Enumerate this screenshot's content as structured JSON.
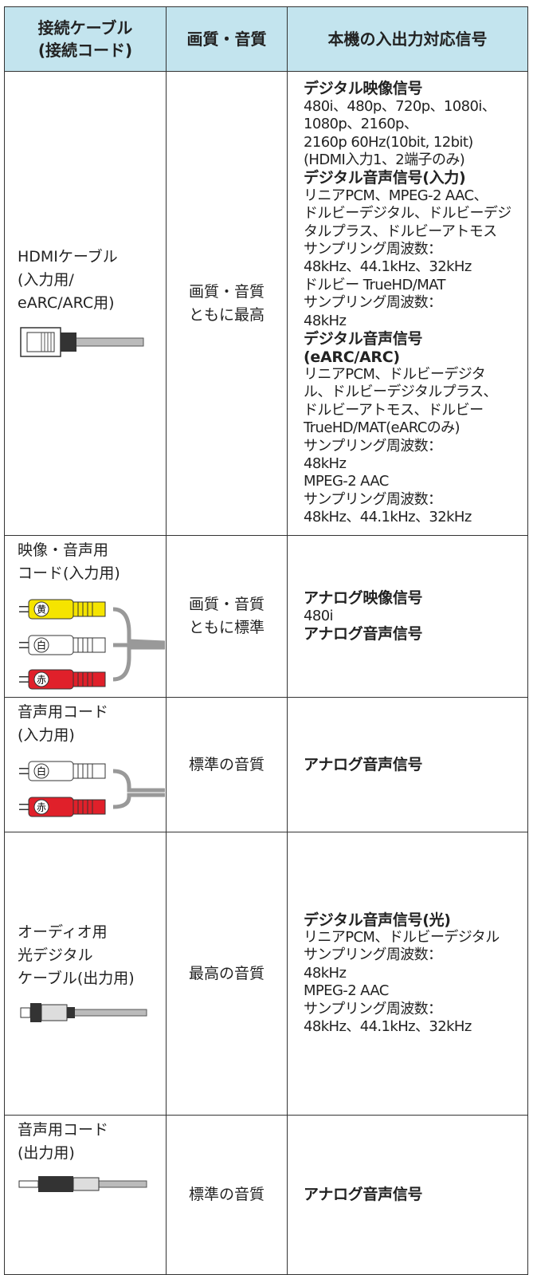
{
  "table": {
    "header": [
      [
        "接続ケーブル",
        "(接続コード)"
      ],
      [
        "画質・音質"
      ],
      [
        "本機の入出力対応信号"
      ]
    ],
    "rows": [
      {
        "cable": [
          "HDMIケーブル",
          "(入力用/",
          "eARC/ARC用)"
        ],
        "quality": [
          "画質・音質",
          "ともに最高"
        ],
        "signals": [
          {
            "heading": [
              "デジタル映像信号"
            ],
            "lines": [
              "480i、480p、720p、1080i、",
              "1080p、2160p、",
              "2160p 60Hz(10bit, 12bit)",
              "(HDMI入力1、2端子のみ)"
            ]
          },
          {
            "heading": [
              "デジタル音声信号(入力)"
            ],
            "lines": [
              "リニアPCM、MPEG-2 AAC、",
              "ドルビーデジタル、ドルビーデジ",
              "タルプラス、ドルビーアトモス",
              "サンプリング周波数：",
              "48kHz、44.1kHz、32kHz",
              "ドルビー TrueHD/MAT",
              "サンプリング周波数：",
              "48kHz"
            ]
          },
          {
            "heading": [
              "デジタル音声信号",
              "(eARC/ARC)"
            ],
            "lines": [
              "リニアPCM、ドルビーデジタ",
              "ル、ドルビーデジタルプラス、",
              "ドルビーアトモス、ドルビー",
              "TrueHD/MAT(eARCのみ)",
              "サンプリング周波数：",
              "48kHz",
              "MPEG-2 AAC",
              "サンプリング周波数：",
              "48kHz、44.1kHz、32kHz"
            ]
          }
        ]
      },
      {
        "cable": [
          "映像・音声用",
          "コード(入力用)"
        ],
        "plugs": [
          "黄",
          "白",
          "赤"
        ],
        "quality": [
          "画質・音質",
          "ともに標準"
        ],
        "signals": [
          {
            "heading": [
              "アナログ映像信号"
            ],
            "lines": [
              "480i"
            ]
          },
          {
            "heading": [
              "アナログ音声信号"
            ],
            "lines": []
          }
        ]
      },
      {
        "cable": [
          "音声用コード",
          "(入力用)"
        ],
        "plugs": [
          "白",
          "赤"
        ],
        "quality": [
          "標準の音質"
        ],
        "signals": [
          {
            "heading": [
              "アナログ音声信号"
            ],
            "lines": []
          }
        ]
      },
      {
        "cable": [
          "オーディオ用",
          "光デジタル",
          "ケーブル(出力用)"
        ],
        "quality": [
          "最高の音質"
        ],
        "signals": [
          {
            "heading": [
              "デジタル音声信号(光)"
            ],
            "lines": [
              "リニアPCM、ドルビーデジタル",
              "サンプリング周波数：",
              "48kHz",
              "MPEG-2 AAC",
              "サンプリング周波数：",
              "48kHz、44.1kHz、32kHz"
            ]
          }
        ]
      },
      {
        "cable": [
          "音声用コード",
          "(出力用)"
        ],
        "quality": [
          "標準の音質"
        ],
        "signals": [
          {
            "heading": [
              "アナログ音声信号"
            ],
            "lines": []
          }
        ]
      }
    ]
  }
}
